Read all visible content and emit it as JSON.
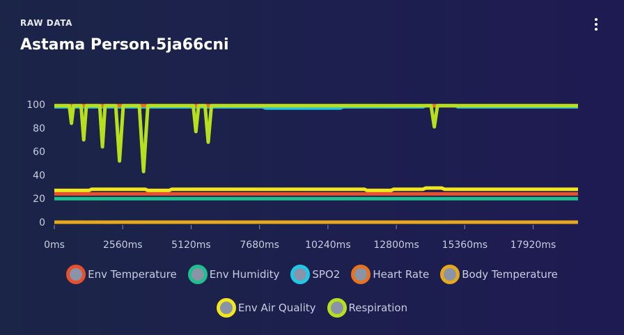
{
  "card": {
    "overline": "RAW DATA",
    "title": "Astama Person.5ja66cni",
    "menu_icon": "more-vertical-icon"
  },
  "chart_data": {
    "type": "line",
    "title": "",
    "xlabel": "",
    "ylabel": "",
    "xlim": [
      0,
      19600
    ],
    "ylim": [
      0,
      100
    ],
    "x_ticks": [
      "0ms",
      "2560ms",
      "5120ms",
      "7680ms",
      "10240ms",
      "12800ms",
      "15360ms",
      "17920ms"
    ],
    "x_tick_values": [
      0,
      2560,
      5120,
      7680,
      10240,
      12800,
      15360,
      17920
    ],
    "y_ticks": [
      0,
      20,
      40,
      60,
      80,
      100
    ],
    "legend_position": "bottom",
    "series": [
      {
        "name": "Env Temperature",
        "color": "#e8502e",
        "points": [
          [
            0,
            24
          ],
          [
            19600,
            24
          ]
        ]
      },
      {
        "name": "Env Humidity",
        "color": "#1fbf8f",
        "points": [
          [
            0,
            20
          ],
          [
            19600,
            20
          ]
        ]
      },
      {
        "name": "SPO2",
        "color": "#1ec8e6",
        "points": [
          [
            0,
            98
          ],
          [
            7800,
            98
          ],
          [
            7900,
            97
          ],
          [
            10700,
            97
          ],
          [
            10800,
            98
          ],
          [
            13800,
            98
          ],
          [
            13900,
            99
          ],
          [
            15000,
            99
          ],
          [
            15100,
            98
          ],
          [
            19600,
            98
          ]
        ]
      },
      {
        "name": "Heart Rate",
        "color": "#e8721e",
        "points": [
          [
            0,
            99
          ],
          [
            19600,
            99
          ]
        ]
      },
      {
        "name": "Body Temperature",
        "color": "#e6a81c",
        "points": [
          [
            0,
            0
          ],
          [
            19600,
            0
          ]
        ]
      },
      {
        "name": "Env Air Quality",
        "color": "#f2e61e",
        "points": [
          [
            0,
            27
          ],
          [
            1300,
            27
          ],
          [
            1400,
            28
          ],
          [
            3400,
            28
          ],
          [
            3500,
            27
          ],
          [
            4300,
            27
          ],
          [
            4400,
            28
          ],
          [
            11600,
            28
          ],
          [
            11700,
            27
          ],
          [
            12600,
            27
          ],
          [
            12700,
            28
          ],
          [
            13800,
            28
          ],
          [
            13900,
            29
          ],
          [
            14500,
            29
          ],
          [
            14600,
            28
          ],
          [
            19600,
            28
          ]
        ]
      },
      {
        "name": "Respiration",
        "color": "#b6e01e",
        "points": [
          [
            0,
            99
          ],
          [
            560,
            99
          ],
          [
            640,
            84
          ],
          [
            720,
            99
          ],
          [
            1000,
            99
          ],
          [
            1100,
            70
          ],
          [
            1200,
            99
          ],
          [
            1700,
            99
          ],
          [
            1800,
            64
          ],
          [
            1900,
            99
          ],
          [
            2300,
            99
          ],
          [
            2440,
            52
          ],
          [
            2580,
            99
          ],
          [
            3180,
            99
          ],
          [
            3340,
            43
          ],
          [
            3500,
            99
          ],
          [
            5200,
            99
          ],
          [
            5300,
            77
          ],
          [
            5400,
            99
          ],
          [
            5640,
            99
          ],
          [
            5760,
            68
          ],
          [
            5880,
            99
          ],
          [
            14100,
            99
          ],
          [
            14220,
            81
          ],
          [
            14340,
            99
          ],
          [
            19600,
            99
          ]
        ]
      }
    ]
  }
}
